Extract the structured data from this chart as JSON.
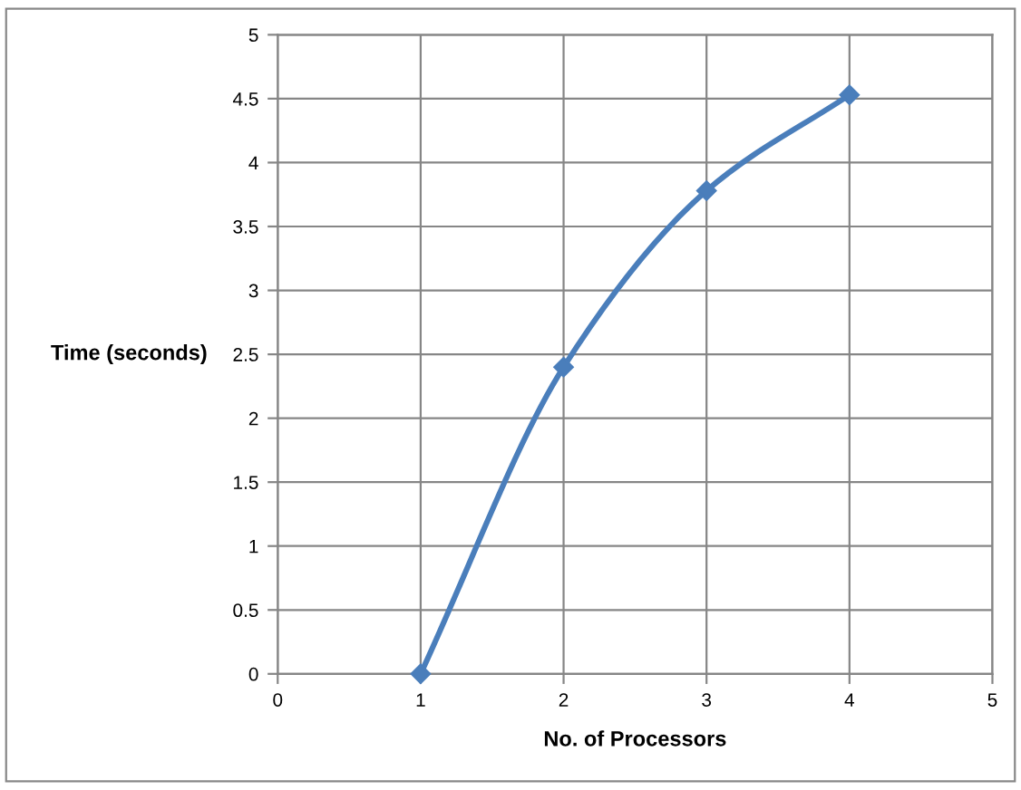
{
  "chart_data": {
    "type": "line",
    "xlabel": "No. of Processors",
    "ylabel": "Time (seconds)",
    "x": [
      1,
      2,
      3,
      4
    ],
    "series": [
      {
        "color": "#4a7ebb",
        "values": [
          0,
          2.4,
          3.78,
          4.53
        ]
      }
    ],
    "xlim": [
      0,
      5
    ],
    "xticks": [
      0,
      1,
      2,
      3,
      4,
      5
    ],
    "ylim": [
      0,
      5
    ],
    "yticks": [
      0,
      0.5,
      1,
      1.5,
      2,
      2.5,
      3,
      3.5,
      4,
      4.5,
      5
    ],
    "grid": true,
    "marker": "diamond",
    "line_style": "solid",
    "legend": false
  }
}
